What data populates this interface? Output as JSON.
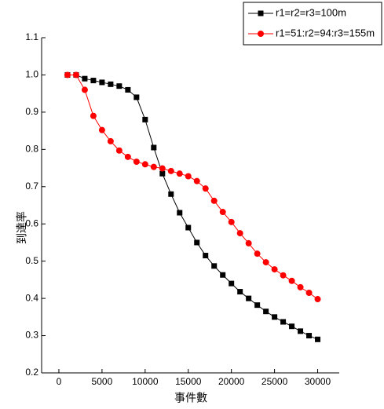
{
  "chart_data": {
    "type": "line",
    "xlabel": "事件數",
    "ylabel": "到達率",
    "x": [
      1000,
      2000,
      3000,
      4000,
      5000,
      6000,
      7000,
      8000,
      9000,
      10000,
      11000,
      12000,
      13000,
      14000,
      15000,
      16000,
      17000,
      18000,
      19000,
      20000,
      21000,
      22000,
      23000,
      24000,
      25000,
      26000,
      27000,
      28000,
      29000,
      30000
    ],
    "series": [
      {
        "name": "r1=r2=r3=100m",
        "color": "#000000",
        "marker": "square",
        "values": [
          1.0,
          1.0,
          0.99,
          0.985,
          0.98,
          0.975,
          0.97,
          0.96,
          0.94,
          0.88,
          0.805,
          0.735,
          0.68,
          0.63,
          0.59,
          0.55,
          0.515,
          0.487,
          0.463,
          0.44,
          0.418,
          0.4,
          0.382,
          0.365,
          0.35,
          0.337,
          0.325,
          0.312,
          0.3,
          0.29
        ]
      },
      {
        "name": "r1=51:r2=94:r3=155m",
        "color": "#ff0000",
        "marker": "circle",
        "values": [
          1.0,
          1.0,
          0.96,
          0.89,
          0.852,
          0.822,
          0.797,
          0.78,
          0.767,
          0.76,
          0.753,
          0.749,
          0.742,
          0.735,
          0.728,
          0.715,
          0.695,
          0.662,
          0.632,
          0.605,
          0.575,
          0.548,
          0.52,
          0.497,
          0.478,
          0.462,
          0.447,
          0.43,
          0.415,
          0.398
        ]
      }
    ],
    "xlim": [
      -2000,
      32500
    ],
    "xticks": [
      0,
      5000,
      10000,
      15000,
      20000,
      25000,
      30000
    ],
    "ylim": [
      0.2,
      1.1
    ],
    "yticks": [
      0.2,
      0.3,
      0.4,
      0.5,
      0.6,
      0.7,
      0.8,
      0.9,
      {
        "value": 1,
        "label": "1.0"
      },
      1.1
    ],
    "legend": "upper right",
    "grid": false
  }
}
